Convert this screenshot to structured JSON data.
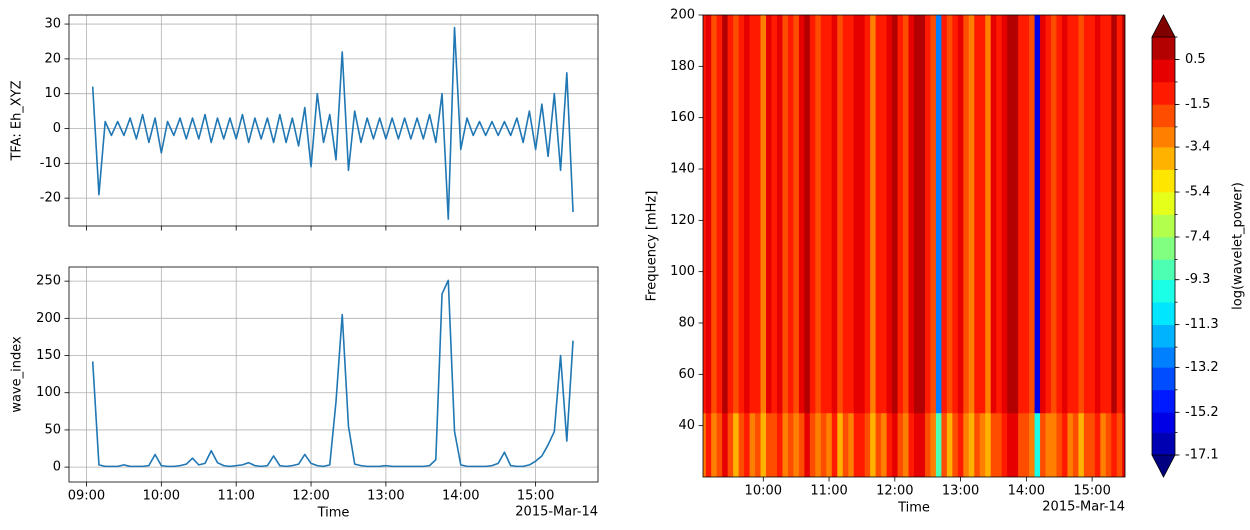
{
  "chart_data": [
    {
      "type": "line",
      "ylabel": "TFA: Eh_XYZ",
      "color": "#1f77b4",
      "grid": true,
      "xlim": [
        "08:46",
        "15:50"
      ],
      "xticks": [
        "09:00",
        "10:00",
        "11:00",
        "12:00",
        "13:00",
        "14:00",
        "15:00"
      ],
      "ylim": [
        -28,
        32.6
      ],
      "yticks": [
        -20,
        -10,
        0,
        10,
        20,
        30
      ],
      "x": [
        "09:05",
        "09:10",
        "09:15",
        "09:20",
        "09:25",
        "09:30",
        "09:35",
        "09:40",
        "09:45",
        "09:50",
        "09:55",
        "10:00",
        "10:05",
        "10:10",
        "10:15",
        "10:20",
        "10:25",
        "10:30",
        "10:35",
        "10:40",
        "10:45",
        "10:50",
        "10:55",
        "11:00",
        "11:05",
        "11:10",
        "11:15",
        "11:20",
        "11:25",
        "11:30",
        "11:35",
        "11:40",
        "11:45",
        "11:50",
        "11:55",
        "12:00",
        "12:05",
        "12:10",
        "12:15",
        "12:20",
        "12:25",
        "12:30",
        "12:35",
        "12:40",
        "12:45",
        "12:50",
        "12:55",
        "13:00",
        "13:05",
        "13:10",
        "13:15",
        "13:20",
        "13:25",
        "13:30",
        "13:35",
        "13:40",
        "13:45",
        "13:50",
        "13:55",
        "14:00",
        "14:05",
        "14:10",
        "14:15",
        "14:20",
        "14:25",
        "14:30",
        "14:35",
        "14:40",
        "14:45",
        "14:50",
        "14:55",
        "15:00",
        "15:05",
        "15:10",
        "15:15",
        "15:20",
        "15:25",
        "15:30"
      ],
      "values": [
        12,
        -19,
        2,
        -2,
        2,
        -2,
        3,
        -3,
        4,
        -4,
        3,
        -7,
        2,
        -2,
        3,
        -3,
        3,
        -3,
        4,
        -4,
        3,
        -3,
        3,
        -3,
        4,
        -4,
        3,
        -3,
        3,
        -4,
        4,
        -4,
        3,
        -5,
        6,
        -11,
        10,
        -4,
        4,
        -9,
        22,
        -12,
        5,
        -4,
        3,
        -3,
        3,
        -3,
        3,
        -3,
        3,
        -3,
        3,
        -3,
        4,
        -4,
        10,
        -26,
        29,
        -6,
        3,
        -2,
        2,
        -2,
        2,
        -2,
        2,
        -2,
        3,
        -4,
        5,
        -6,
        7,
        -8,
        10,
        -12,
        16,
        -24
      ]
    },
    {
      "type": "line",
      "ylabel": "wave_index",
      "xlabel": "Time",
      "x_offset_label": "2015-Mar-14",
      "color": "#1f77b4",
      "grid": true,
      "xlim": [
        "08:46",
        "15:50"
      ],
      "xticks": [
        "09:00",
        "10:00",
        "11:00",
        "12:00",
        "13:00",
        "14:00",
        "15:00"
      ],
      "ylim": [
        -20,
        269
      ],
      "yticks": [
        0,
        50,
        100,
        150,
        200,
        250
      ],
      "x": [
        "09:05",
        "09:10",
        "09:15",
        "09:20",
        "09:25",
        "09:30",
        "09:35",
        "09:40",
        "09:45",
        "09:50",
        "09:55",
        "10:00",
        "10:05",
        "10:10",
        "10:15",
        "10:20",
        "10:25",
        "10:30",
        "10:35",
        "10:40",
        "10:45",
        "10:50",
        "10:55",
        "11:00",
        "11:05",
        "11:10",
        "11:15",
        "11:20",
        "11:25",
        "11:30",
        "11:35",
        "11:40",
        "11:45",
        "11:50",
        "11:55",
        "12:00",
        "12:05",
        "12:10",
        "12:15",
        "12:20",
        "12:25",
        "12:30",
        "12:35",
        "12:40",
        "12:45",
        "12:50",
        "12:55",
        "13:00",
        "13:05",
        "13:10",
        "13:15",
        "13:20",
        "13:25",
        "13:30",
        "13:35",
        "13:40",
        "13:45",
        "13:50",
        "13:55",
        "14:00",
        "14:05",
        "14:10",
        "14:15",
        "14:20",
        "14:25",
        "14:30",
        "14:35",
        "14:40",
        "14:45",
        "14:50",
        "14:55",
        "15:00",
        "15:05",
        "15:10",
        "15:15",
        "15:20",
        "15:25",
        "15:30"
      ],
      "values": [
        142,
        3,
        1,
        1,
        1,
        3,
        1,
        1,
        1,
        2,
        17,
        2,
        1,
        1,
        2,
        4,
        12,
        3,
        5,
        22,
        6,
        2,
        1,
        2,
        3,
        6,
        2,
        1,
        2,
        15,
        2,
        1,
        2,
        4,
        17,
        5,
        2,
        1,
        3,
        88,
        205,
        55,
        4,
        2,
        1,
        1,
        1,
        2,
        1,
        1,
        1,
        1,
        1,
        1,
        2,
        10,
        233,
        251,
        48,
        3,
        1,
        1,
        1,
        1,
        2,
        5,
        20,
        2,
        1,
        1,
        3,
        8,
        15,
        30,
        48,
        150,
        35,
        170
      ]
    },
    {
      "type": "heatmap",
      "ylabel": "Frequency [mHz]",
      "xlabel": "Time",
      "x_offset_label": "2015-Mar-14",
      "grid": false,
      "xlim": [
        "09:05",
        "15:30"
      ],
      "xticks": [
        "10:00",
        "11:00",
        "12:00",
        "13:00",
        "14:00",
        "15:00"
      ],
      "ylim": [
        20,
        200
      ],
      "yticks": [
        40,
        60,
        80,
        100,
        120,
        140,
        160,
        180,
        200
      ],
      "x": [
        "09:05",
        "09:10",
        "09:15",
        "09:20",
        "09:25",
        "09:30",
        "09:35",
        "09:40",
        "09:45",
        "09:50",
        "09:55",
        "10:00",
        "10:05",
        "10:10",
        "10:15",
        "10:20",
        "10:25",
        "10:30",
        "10:35",
        "10:40",
        "10:45",
        "10:50",
        "10:55",
        "11:00",
        "11:05",
        "11:10",
        "11:15",
        "11:20",
        "11:25",
        "11:30",
        "11:35",
        "11:40",
        "11:45",
        "11:50",
        "11:55",
        "12:00",
        "12:05",
        "12:10",
        "12:15",
        "12:20",
        "12:25",
        "12:30",
        "12:35",
        "12:40",
        "12:45",
        "12:50",
        "12:55",
        "13:00",
        "13:05",
        "13:10",
        "13:15",
        "13:20",
        "13:25",
        "13:30",
        "13:35",
        "13:40",
        "13:45",
        "13:50",
        "13:55",
        "14:00",
        "14:05",
        "14:10",
        "14:15",
        "14:20",
        "14:25",
        "14:30",
        "14:35",
        "14:40",
        "14:45",
        "14:50",
        "14:55",
        "15:00",
        "15:05",
        "15:10",
        "15:15",
        "15:20",
        "15:25",
        "15:30"
      ],
      "y_edges": [
        20,
        45,
        200
      ],
      "z": [
        [
          -2.6,
          -1.4,
          -3.2,
          -2.0,
          -0.5,
          -2.4,
          -3.5,
          -1.9,
          -1.0,
          -2.7,
          -2.1,
          -3.8,
          -1.6,
          -2.5,
          -1.1,
          -2.9,
          -1.8,
          -3.4,
          -1.7,
          -0.4,
          -2.3,
          -3.1,
          -1.8,
          -2.6,
          -1.0,
          -3.6,
          -2.0,
          -2.8,
          -1.4,
          -0.7,
          -2.4,
          -3.9,
          -1.9,
          -2.7,
          -0.9,
          -0.2,
          -1.8,
          -3.0,
          -1.5,
          -0.3,
          -0.5,
          -2.1,
          -3.0,
          -8.6,
          -1.8,
          -3.5,
          -2.4,
          -1.5,
          -3.2,
          -4.2,
          -2.0,
          -2.8,
          -3.8,
          -1.7,
          -2.5,
          -0.9,
          -0.1,
          -0.3,
          -2.2,
          -2.0,
          -2.9,
          -9.5,
          -1.6,
          -2.6,
          -3.4,
          -1.9,
          -1.1,
          -2.8,
          -2.1,
          -3.6,
          -2.3,
          -1.8,
          -0.8,
          -2.7,
          -2.0,
          -0.6,
          -2.5,
          -0.5
        ],
        [
          -1.2,
          -0.3,
          -1.8,
          -0.8,
          0.6,
          -1.1,
          -2.2,
          -0.6,
          0.2,
          -1.4,
          -0.9,
          -2.6,
          -0.4,
          -1.2,
          0.1,
          -1.6,
          -0.7,
          -2.1,
          -0.5,
          0.7,
          -1.0,
          -1.9,
          -0.6,
          -1.3,
          0.2,
          -2.4,
          -0.8,
          -1.5,
          -0.2,
          0.4,
          -1.1,
          -2.8,
          -0.7,
          -1.4,
          0.3,
          0.9,
          -0.6,
          -1.7,
          -0.4,
          0.8,
          0.6,
          -0.9,
          -1.8,
          -12.5,
          -0.6,
          -2.3,
          -1.2,
          -0.3,
          -1.9,
          -3.1,
          -0.8,
          -1.5,
          -2.6,
          -0.5,
          -1.2,
          0.2,
          0.9,
          0.7,
          -1.0,
          -0.8,
          -1.6,
          -15.8,
          -0.4,
          -1.3,
          -2.2,
          -0.7,
          0.1,
          -1.5,
          -0.9,
          -2.4,
          -1.1,
          -0.6,
          0.3,
          -1.4,
          -0.8,
          0.5,
          -1.2,
          0.6
        ]
      ],
      "colorbar": {
        "label": "log(wavelet_power)",
        "levels": [
          -17.1,
          -16.1,
          -15.2,
          -14.2,
          -13.2,
          -12.3,
          -11.3,
          -10.3,
          -9.3,
          -8.4,
          -7.4,
          -6.4,
          -5.4,
          -4.4,
          -3.4,
          -2.5,
          -1.5,
          -0.5,
          0.5,
          1.5
        ],
        "colors": [
          "#000080",
          "#0000b3",
          "#0000e6",
          "#001aff",
          "#004dff",
          "#0080ff",
          "#00b3ff",
          "#00e6ff",
          "#1affe6",
          "#4dffb3",
          "#80ff80",
          "#b3ff4d",
          "#e6ff1a",
          "#ffe600",
          "#ffb300",
          "#ff8000",
          "#ff4d00",
          "#ff1a00",
          "#e60000",
          "#b30000",
          "#800000"
        ],
        "ticks": [
          -17.1,
          -15.2,
          -13.2,
          -11.3,
          -9.3,
          -7.4,
          -5.4,
          -3.4,
          -1.5,
          0.5
        ]
      }
    }
  ]
}
